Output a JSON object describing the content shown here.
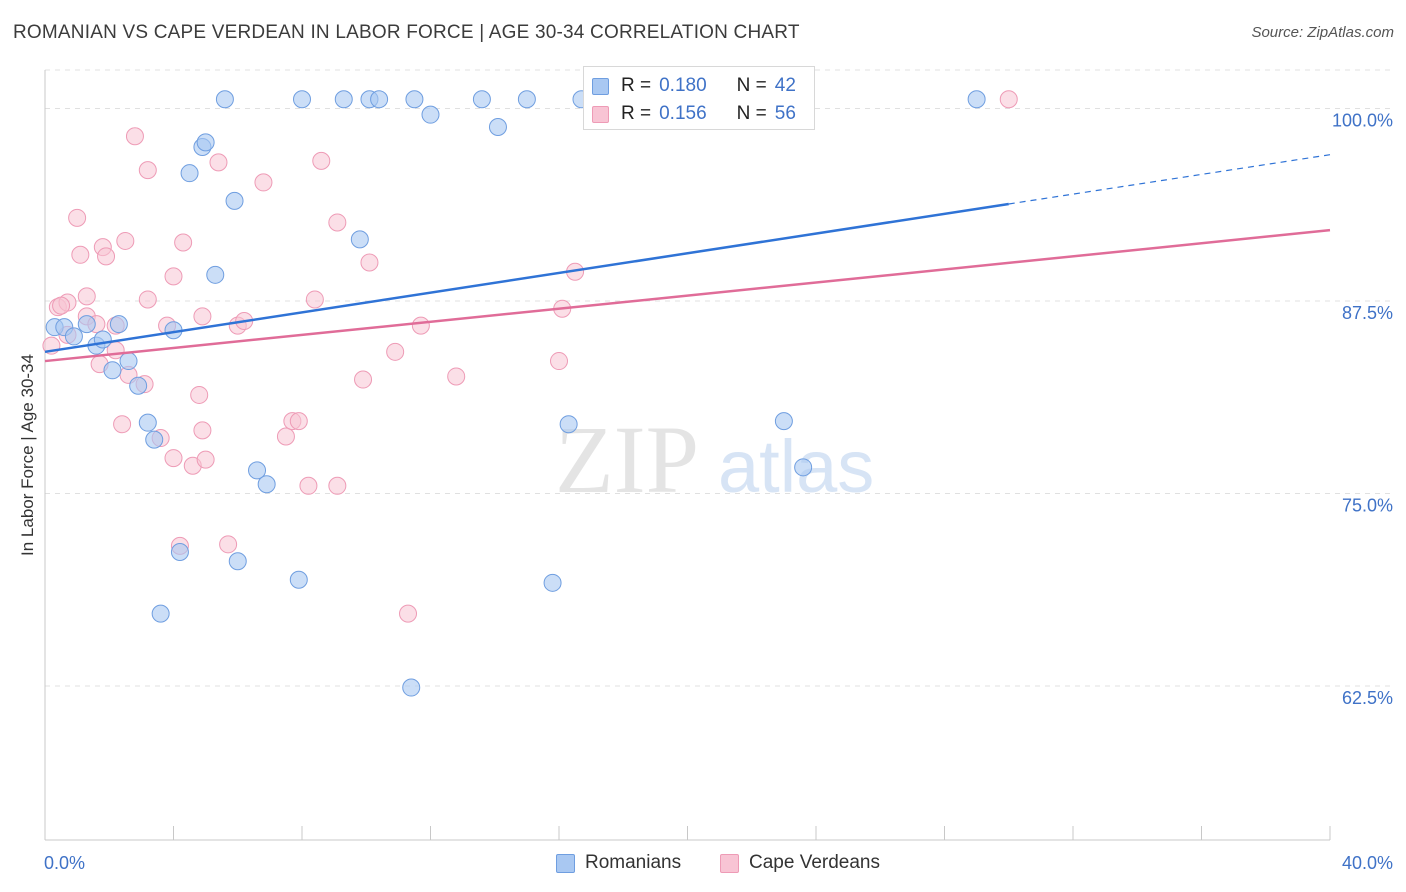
{
  "title": "ROMANIAN VS CAPE VERDEAN IN LABOR FORCE | AGE 30-34 CORRELATION CHART",
  "source": "Source: ZipAtlas.com",
  "watermark": {
    "zip": "ZIP",
    "atlas": "atlas"
  },
  "legend": {
    "romanians": {
      "r_label": "R =",
      "r": "0.180",
      "n_label": "N =",
      "n": "42"
    },
    "cape_verdeans": {
      "r_label": "R =",
      "r": "0.156",
      "n_label": "N =",
      "n": "56"
    }
  },
  "colors": {
    "romanian_fill": "#a9c8f2",
    "romanian_stroke": "#6f9ee0",
    "romanian_line": "#2f73d6",
    "capeverdean_fill": "#f8c4d4",
    "capeverdean_stroke": "#ee9bb6",
    "capeverdean_line": "#e06c98",
    "tick_label": "#3f72c7",
    "grid": "#e0e0e0"
  },
  "chart_data": {
    "type": "scatter",
    "title": "ROMANIAN VS CAPE VERDEAN IN LABOR FORCE | AGE 30-34 CORRELATION CHART",
    "xlabel": "",
    "ylabel": "In Labor Force | Age 30-34",
    "xlim": [
      0,
      40
    ],
    "ylim": [
      52.5,
      102.5
    ],
    "x_tick_labels": [
      "0.0%",
      "40.0%"
    ],
    "y_ticks": [
      62.5,
      75.0,
      87.5,
      100.0
    ],
    "y_tick_labels": [
      "62.5%",
      "75.0%",
      "87.5%",
      "100.0%"
    ],
    "series": [
      {
        "name": "Romanians",
        "r": 0.18,
        "n": 42,
        "trend": {
          "x0": 0,
          "y0": 84.2,
          "x1": 30,
          "y1": 93.8,
          "x_dash_end": 40,
          "y_dash_end": 97.0
        },
        "points": [
          [
            0.3,
            85.8
          ],
          [
            0.6,
            85.8
          ],
          [
            0.9,
            85.2
          ],
          [
            1.3,
            86.0
          ],
          [
            1.6,
            84.6
          ],
          [
            1.8,
            85.0
          ],
          [
            2.3,
            86.0
          ],
          [
            2.6,
            83.6
          ],
          [
            2.1,
            83.0
          ],
          [
            2.9,
            82.0
          ],
          [
            3.2,
            79.6
          ],
          [
            3.4,
            78.5
          ],
          [
            4.0,
            85.6
          ],
          [
            4.5,
            95.8
          ],
          [
            4.9,
            97.5
          ],
          [
            5.0,
            97.8
          ],
          [
            5.3,
            89.2
          ],
          [
            5.9,
            94.0
          ],
          [
            5.6,
            100.6
          ],
          [
            6.6,
            76.5
          ],
          [
            6.9,
            75.6
          ],
          [
            7.9,
            69.4
          ],
          [
            8.0,
            100.6
          ],
          [
            9.3,
            100.6
          ],
          [
            9.8,
            91.5
          ],
          [
            10.1,
            100.6
          ],
          [
            10.4,
            100.6
          ],
          [
            11.5,
            100.6
          ],
          [
            12.0,
            99.6
          ],
          [
            13.6,
            100.6
          ],
          [
            14.1,
            98.8
          ],
          [
            15.0,
            100.6
          ],
          [
            16.7,
            100.6
          ],
          [
            3.6,
            67.2
          ],
          [
            4.2,
            71.2
          ],
          [
            6.0,
            70.6
          ],
          [
            11.4,
            62.4
          ],
          [
            15.8,
            69.2
          ],
          [
            23.0,
            79.7
          ],
          [
            23.6,
            76.7
          ],
          [
            16.3,
            79.5
          ],
          [
            29.0,
            100.6
          ]
        ]
      },
      {
        "name": "Cape Verdeans",
        "r": 0.156,
        "n": 56,
        "trend": {
          "x0": 0,
          "y0": 83.6,
          "x1": 40,
          "y1": 92.1
        },
        "points": [
          [
            0.2,
            84.6
          ],
          [
            0.4,
            87.1
          ],
          [
            0.7,
            85.3
          ],
          [
            0.7,
            87.4
          ],
          [
            1.0,
            92.9
          ],
          [
            1.1,
            90.5
          ],
          [
            1.3,
            86.5
          ],
          [
            1.3,
            87.8
          ],
          [
            1.6,
            86.0
          ],
          [
            1.7,
            83.4
          ],
          [
            1.8,
            91.0
          ],
          [
            1.9,
            90.4
          ],
          [
            2.2,
            84.3
          ],
          [
            2.4,
            79.5
          ],
          [
            2.5,
            91.4
          ],
          [
            2.6,
            82.7
          ],
          [
            2.8,
            98.2
          ],
          [
            3.1,
            82.1
          ],
          [
            3.2,
            96.0
          ],
          [
            3.2,
            87.6
          ],
          [
            3.6,
            78.6
          ],
          [
            3.8,
            85.9
          ],
          [
            4.0,
            89.1
          ],
          [
            4.0,
            77.3
          ],
          [
            4.2,
            71.6
          ],
          [
            4.3,
            91.3
          ],
          [
            4.6,
            76.8
          ],
          [
            4.8,
            81.4
          ],
          [
            4.9,
            79.1
          ],
          [
            5.0,
            77.2
          ],
          [
            5.4,
            96.5
          ],
          [
            5.7,
            71.7
          ],
          [
            6.0,
            85.9
          ],
          [
            6.2,
            86.2
          ],
          [
            6.8,
            95.2
          ],
          [
            7.5,
            78.7
          ],
          [
            7.7,
            79.7
          ],
          [
            7.9,
            79.7
          ],
          [
            8.2,
            75.5
          ],
          [
            8.4,
            87.6
          ],
          [
            8.6,
            96.6
          ],
          [
            9.1,
            92.6
          ],
          [
            9.1,
            75.5
          ],
          [
            9.9,
            82.4
          ],
          [
            10.1,
            90.0
          ],
          [
            10.9,
            84.2
          ],
          [
            11.3,
            67.2
          ],
          [
            11.7,
            85.9
          ],
          [
            12.8,
            82.6
          ],
          [
            16.0,
            83.6
          ],
          [
            16.1,
            87.0
          ],
          [
            16.5,
            89.4
          ],
          [
            30.0,
            100.6
          ],
          [
            4.9,
            86.5
          ],
          [
            0.5,
            87.2
          ],
          [
            2.2,
            85.9
          ]
        ]
      }
    ]
  },
  "bottom_legend": {
    "romanians": "Romanians",
    "cape_verdeans": "Cape Verdeans"
  }
}
